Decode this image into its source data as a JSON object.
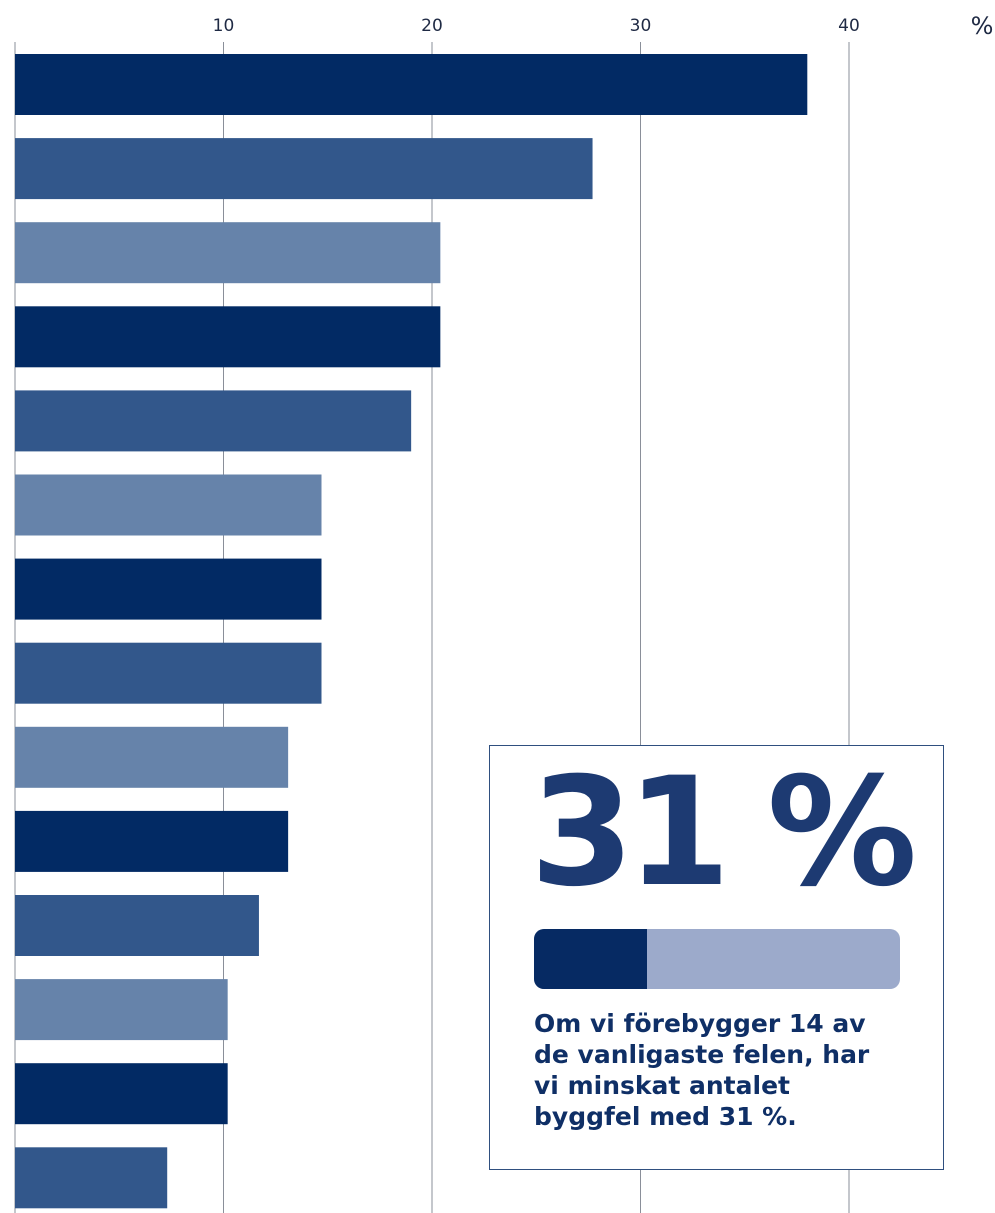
{
  "chart_data": {
    "type": "bar",
    "orientation": "horizontal",
    "unit_label": "%",
    "x_ticks": [
      10,
      20,
      30,
      40
    ],
    "xlim": [
      0,
      47
    ],
    "grid": true,
    "values": [
      38,
      27.7,
      20.4,
      20.4,
      19,
      14.7,
      14.7,
      14.7,
      13.1,
      13.1,
      11.7,
      10.2,
      10.2,
      7.3
    ],
    "bar_colors": [
      "#022a64",
      "#32578b",
      "#6683aa",
      "#022a64",
      "#32578b",
      "#6683aa",
      "#022a64",
      "#32578b",
      "#6683aa",
      "#022a64",
      "#32578b",
      "#6683aa",
      "#022a64",
      "#32578b"
    ]
  },
  "callout": {
    "big_number": "31 %",
    "progress_fraction": 0.31,
    "caption_lines": [
      "Om vi förebygger 14 av",
      "de vanligaste felen, har",
      "vi minskat antalet",
      "byggfel med 31 %."
    ]
  }
}
